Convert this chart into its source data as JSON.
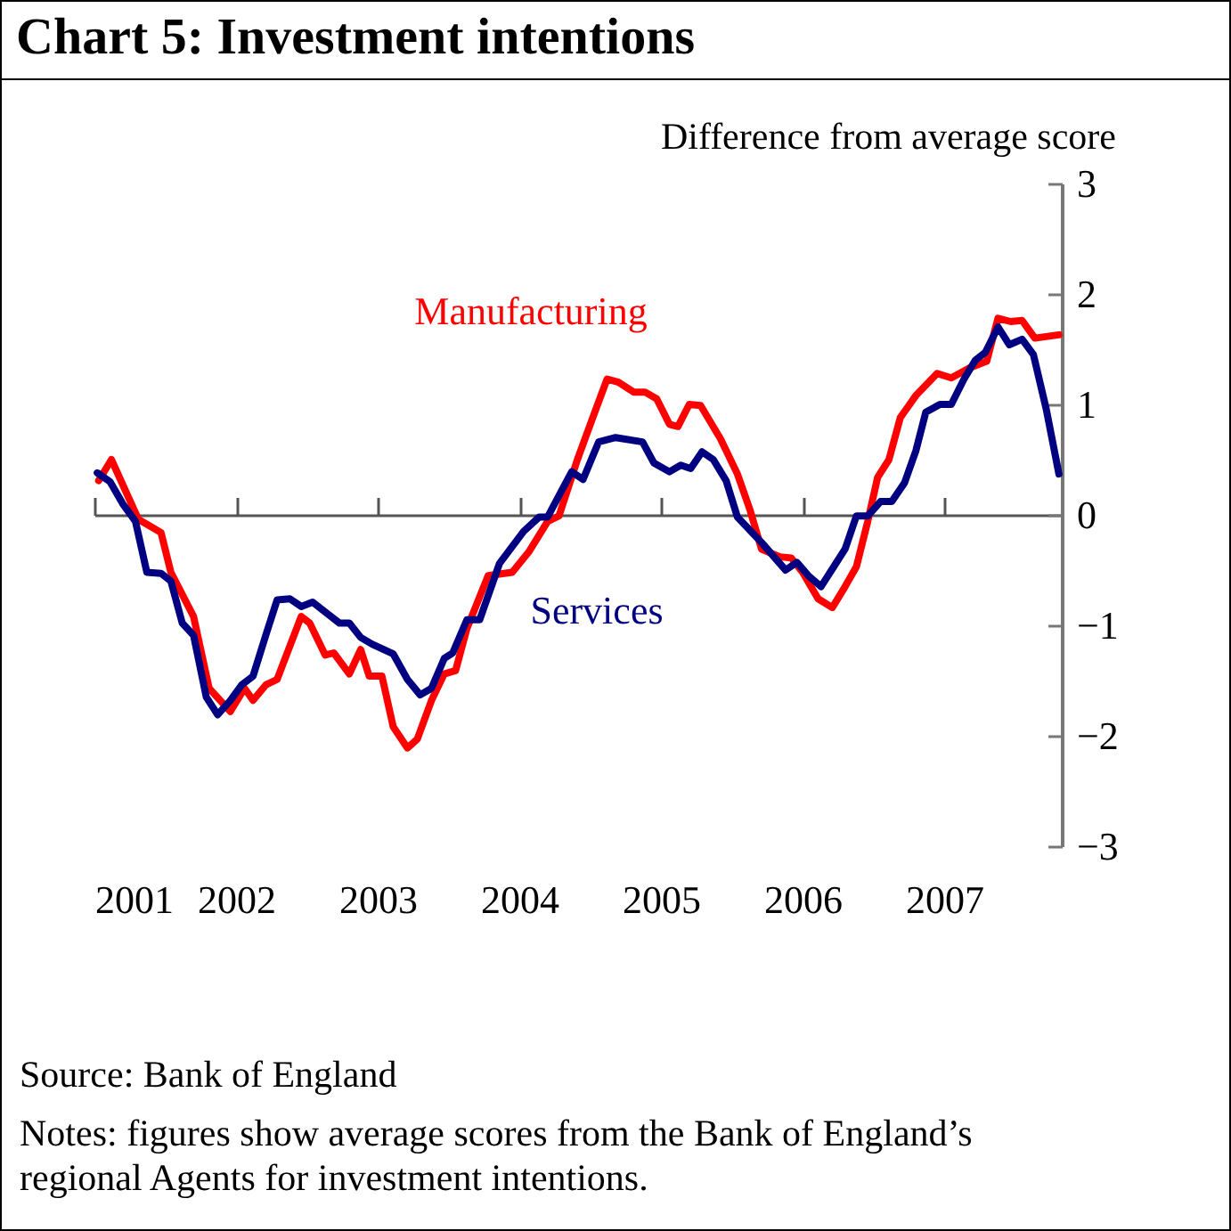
{
  "chart_data": {
    "type": "line",
    "title": "Chart 5: Investment intentions",
    "ylabel": "Difference from average score",
    "xlim": [
      2001,
      2007.83
    ],
    "xticks": [
      2001,
      2002,
      2003,
      2004,
      2005,
      2006,
      2007
    ],
    "ylim": [
      -3,
      3
    ],
    "yticks": [
      -3,
      -2,
      -1,
      0,
      1,
      2,
      3
    ],
    "annotations": [
      "Source: Bank of England",
      "Notes: figures show average scores from the Bank of England’s regional Agents for investment intentions."
    ],
    "series": [
      {
        "name": "Manufacturing",
        "color": "#ff0000",
        "x": [
          2001.03,
          2001.12,
          2001.31,
          2001.47,
          2001.54,
          2001.7,
          2001.81,
          2001.96,
          2002.06,
          2002.12,
          2002.21,
          2002.29,
          2002.46,
          2002.52,
          2002.63,
          2002.69,
          2002.8,
          2002.88,
          2002.94,
          2003.03,
          2003.11,
          2003.21,
          2003.28,
          2003.38,
          2003.47,
          2003.55,
          2003.63,
          2003.78,
          2003.95,
          2004.07,
          2004.2,
          2004.28,
          2004.41,
          2004.51,
          2004.62,
          2004.7,
          2004.81,
          2004.89,
          2004.97,
          2005.06,
          2005.12,
          2005.2,
          2005.28,
          2005.42,
          2005.54,
          2005.63,
          2005.71,
          2005.84,
          2005.92,
          2006.0,
          2006.11,
          2006.21,
          2006.3,
          2006.38,
          2006.46,
          2006.53,
          2006.61,
          2006.69,
          2006.8,
          2006.95,
          2007.05,
          2007.18,
          2007.3,
          2007.38,
          2007.47,
          2007.55,
          2007.64,
          2007.81
        ],
        "values": [
          0.31,
          0.5,
          -0.04,
          -0.16,
          -0.52,
          -0.92,
          -1.57,
          -1.78,
          -1.57,
          -1.68,
          -1.54,
          -1.49,
          -0.92,
          -0.98,
          -1.27,
          -1.25,
          -1.44,
          -1.22,
          -1.46,
          -1.46,
          -1.92,
          -2.11,
          -2.03,
          -1.68,
          -1.44,
          -1.41,
          -1.03,
          -0.55,
          -0.52,
          -0.33,
          -0.06,
          -0.01,
          0.5,
          0.85,
          1.23,
          1.2,
          1.11,
          1.11,
          1.05,
          0.82,
          0.8,
          1.0,
          0.99,
          0.69,
          0.37,
          0.04,
          -0.31,
          -0.38,
          -0.39,
          -0.52,
          -0.76,
          -0.84,
          -0.65,
          -0.47,
          -0.06,
          0.34,
          0.5,
          0.88,
          1.08,
          1.28,
          1.24,
          1.33,
          1.39,
          1.78,
          1.75,
          1.76,
          1.6,
          1.63
        ]
      },
      {
        "name": "Services",
        "color": "#000080",
        "x": [
          2001.02,
          2001.11,
          2001.2,
          2001.29,
          2001.37,
          2001.47,
          2001.54,
          2001.62,
          2001.7,
          2001.79,
          2001.87,
          2001.96,
          2002.04,
          2002.12,
          2002.21,
          2002.29,
          2002.38,
          2002.46,
          2002.54,
          2002.63,
          2002.73,
          2002.8,
          2002.88,
          2002.96,
          2003.11,
          2003.21,
          2003.3,
          2003.38,
          2003.47,
          2003.53,
          2003.63,
          2003.72,
          2003.86,
          2004.03,
          2004.14,
          2004.2,
          2004.37,
          2004.45,
          2004.56,
          2004.68,
          2004.87,
          2004.95,
          2005.06,
          2005.14,
          2005.21,
          2005.29,
          2005.37,
          2005.46,
          2005.54,
          2005.71,
          2005.88,
          2005.96,
          2006.04,
          2006.13,
          2006.21,
          2006.3,
          2006.38,
          2006.46,
          2006.55,
          2006.63,
          2006.72,
          2006.8,
          2006.87,
          2006.97,
          2007.05,
          2007.14,
          2007.22,
          2007.29,
          2007.38,
          2007.46,
          2007.55,
          2007.63,
          2007.72,
          2007.81
        ],
        "values": [
          0.38,
          0.3,
          0.1,
          -0.06,
          -0.52,
          -0.53,
          -0.6,
          -0.98,
          -1.09,
          -1.65,
          -1.81,
          -1.68,
          -1.54,
          -1.46,
          -1.09,
          -0.77,
          -0.76,
          -0.83,
          -0.79,
          -0.88,
          -0.98,
          -0.98,
          -1.11,
          -1.17,
          -1.26,
          -1.49,
          -1.63,
          -1.57,
          -1.3,
          -1.25,
          -0.95,
          -0.95,
          -0.44,
          -0.15,
          -0.02,
          -0.02,
          0.39,
          0.32,
          0.66,
          0.7,
          0.66,
          0.47,
          0.39,
          0.45,
          0.42,
          0.57,
          0.5,
          0.31,
          -0.02,
          -0.25,
          -0.5,
          -0.43,
          -0.55,
          -0.65,
          -0.49,
          -0.31,
          -0.01,
          -0.01,
          0.12,
          0.12,
          0.29,
          0.58,
          0.93,
          1.0,
          1.0,
          1.23,
          1.4,
          1.47,
          1.7,
          1.54,
          1.59,
          1.45,
          0.96,
          0.37
        ]
      }
    ]
  }
}
